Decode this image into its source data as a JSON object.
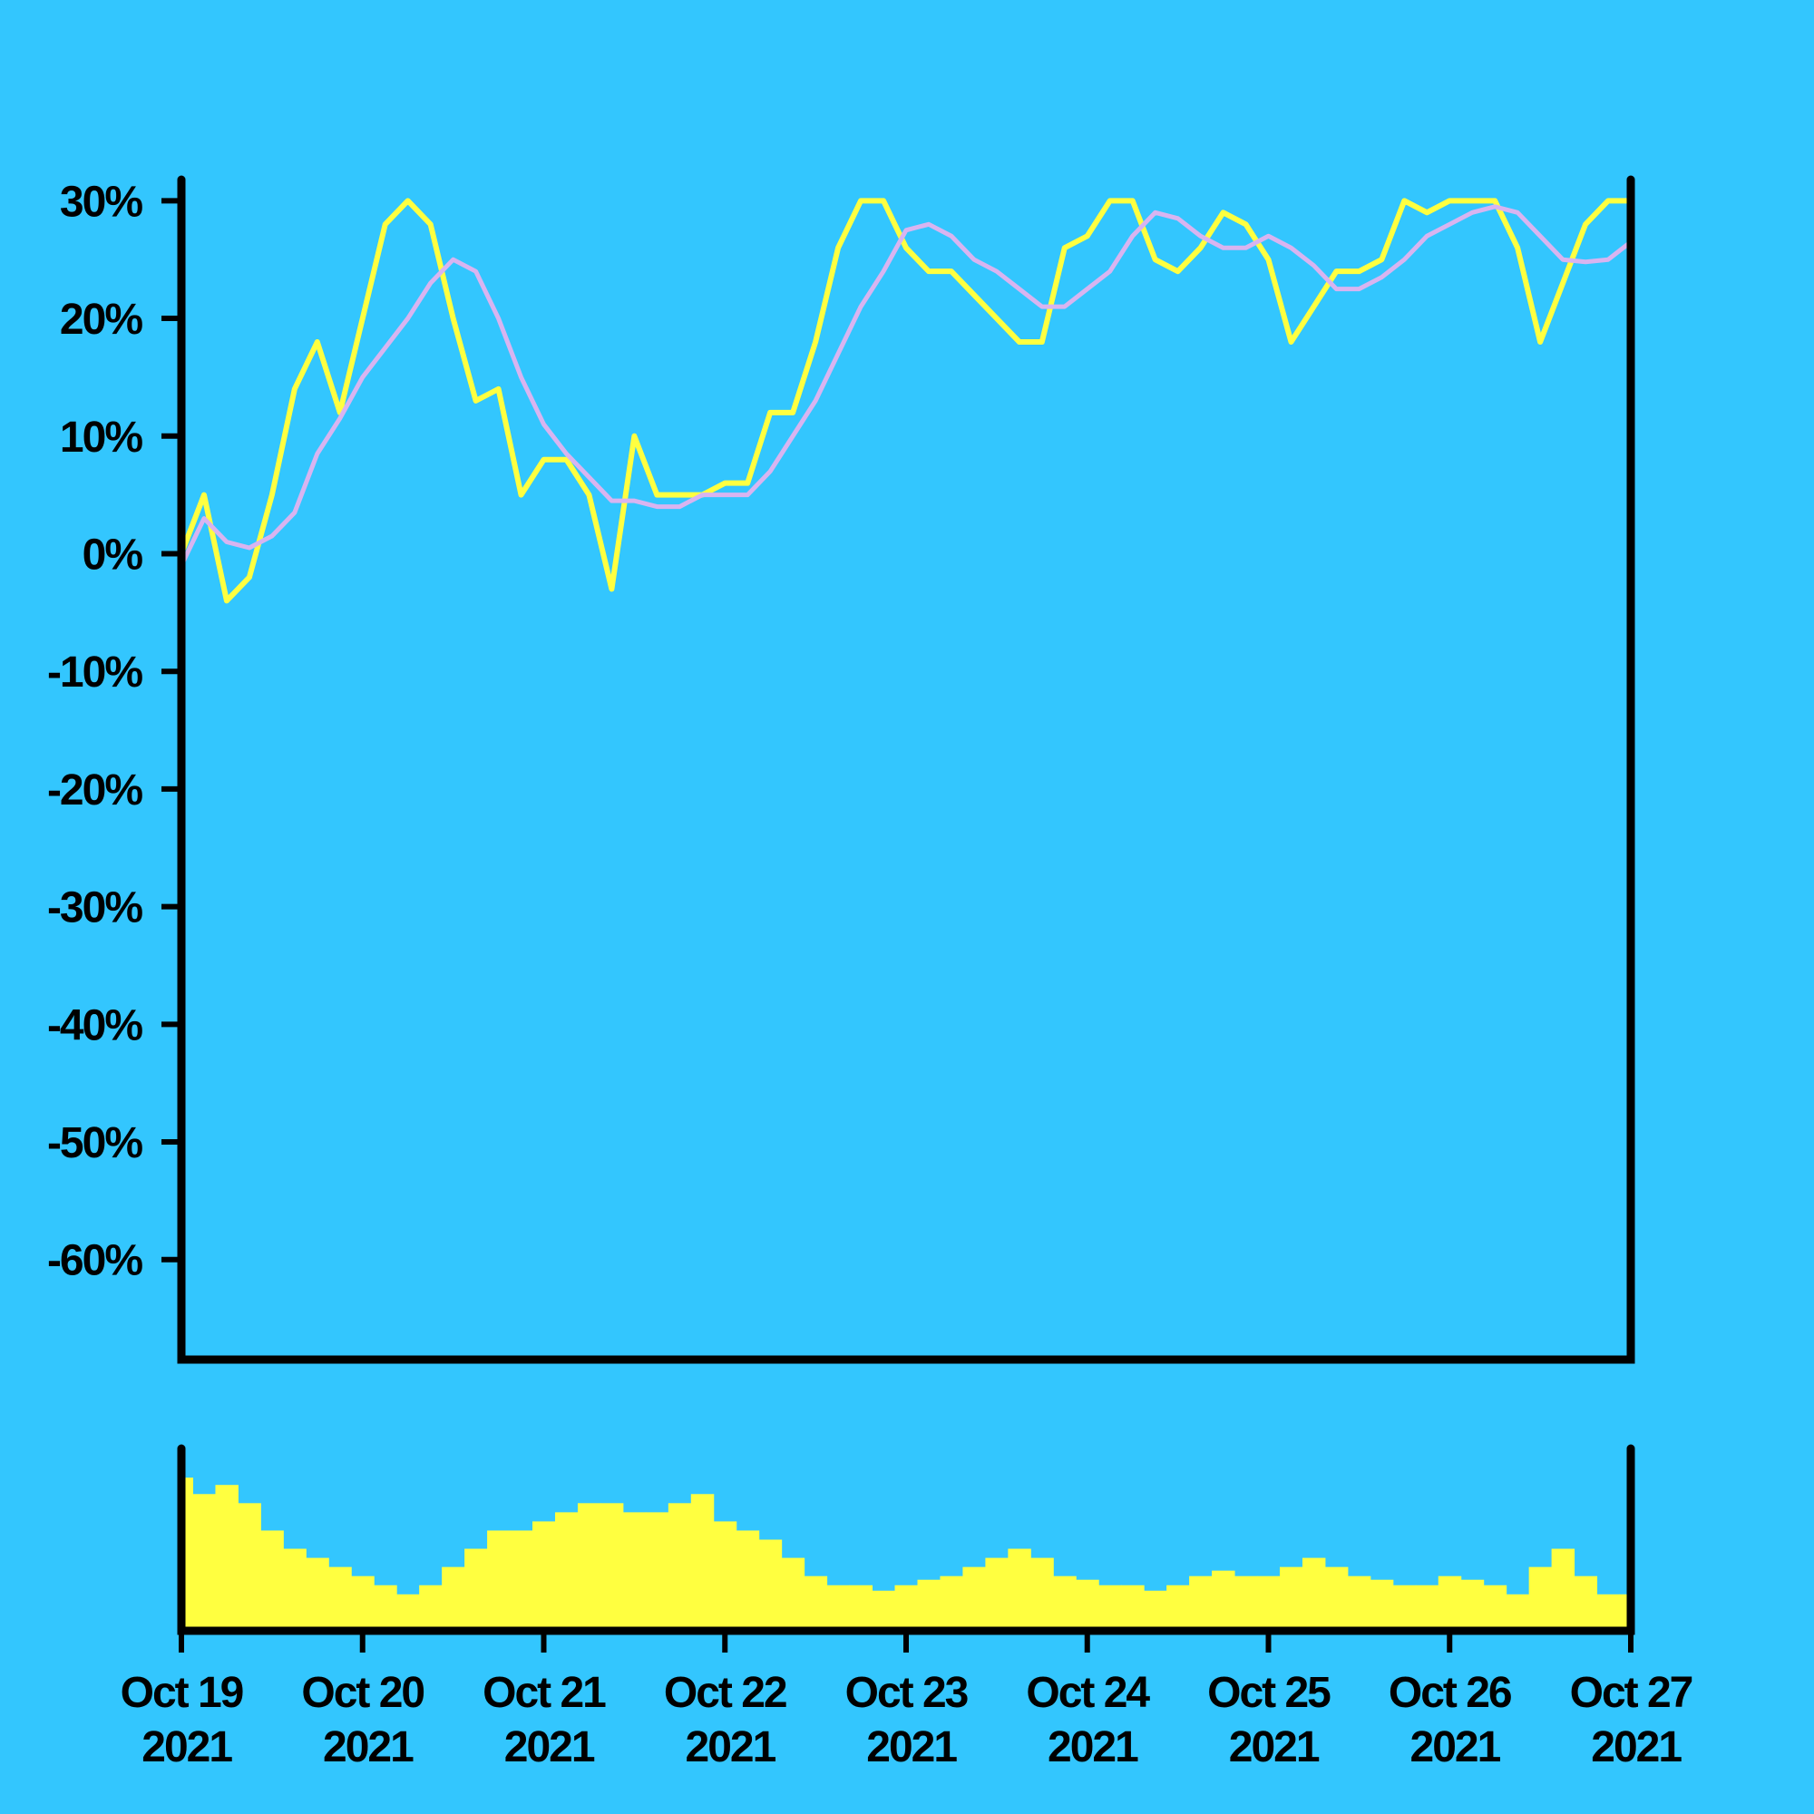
{
  "chart_data": [
    {
      "type": "line",
      "categories": [
        "Oct 19 2021",
        null,
        null,
        null,
        null,
        null,
        null,
        null,
        "Oct 20 2021",
        null,
        null,
        null,
        null,
        null,
        null,
        null,
        "Oct 21 2021",
        null,
        null,
        null,
        null,
        null,
        null,
        null,
        "Oct 22 2021",
        null,
        null,
        null,
        null,
        null,
        null,
        null,
        "Oct 23 2021",
        null,
        null,
        null,
        null,
        null,
        null,
        null,
        "Oct 24 2021",
        null,
        null,
        null,
        null,
        null,
        null,
        null,
        "Oct 25 2021",
        null,
        null,
        null,
        null,
        null,
        null,
        null,
        "Oct 26 2021",
        null,
        null,
        null,
        null,
        null,
        null,
        null,
        "Oct 27 2021"
      ],
      "series": [
        {
          "color": "#ffff40",
          "values": [
            0,
            5,
            -4,
            -2,
            5,
            14,
            18,
            12,
            20,
            28,
            30,
            28,
            20,
            13,
            14,
            5,
            8,
            8,
            5,
            -3,
            10,
            5,
            5,
            5,
            6,
            6,
            12,
            12,
            18,
            26,
            30,
            30,
            26,
            24,
            24,
            22,
            20,
            18,
            18,
            26,
            27,
            30,
            30,
            25,
            24,
            26,
            29,
            28,
            25,
            18,
            21,
            24,
            24,
            25,
            30,
            29,
            30,
            30,
            30,
            26,
            18,
            23,
            28,
            30,
            30
          ]
        },
        {
          "color": "#d8b4f0",
          "values": [
            -1,
            3,
            1,
            0.5,
            1.5,
            3.5,
            8.5,
            11.5,
            15,
            17.5,
            20,
            23,
            25,
            24,
            20,
            15,
            11,
            8.5,
            6.5,
            4.5,
            4.5,
            4,
            4,
            5,
            5,
            5,
            7,
            10,
            13,
            17,
            21,
            24,
            27.5,
            28,
            27,
            25,
            24,
            22.5,
            21,
            21,
            22.5,
            24,
            27,
            29,
            28.5,
            27,
            26,
            26,
            27,
            26,
            24.5,
            22.5,
            22.5,
            23.5,
            25,
            27,
            28,
            29,
            29.5,
            29,
            27,
            25,
            24.8,
            25,
            26.5
          ]
        }
      ],
      "ylim": [
        -68.5,
        31.8
      ],
      "yticks": [
        {
          "value": 30,
          "label": "30%"
        },
        {
          "value": 20,
          "label": "20%"
        },
        {
          "value": 10,
          "label": "10%"
        },
        {
          "value": 0,
          "label": "0%"
        },
        {
          "value": -10,
          "label": "-10%"
        },
        {
          "value": -20,
          "label": "-20%"
        },
        {
          "value": -30,
          "label": "-30%"
        },
        {
          "value": -40,
          "label": "-40%"
        },
        {
          "value": -50,
          "label": "-50%"
        },
        {
          "value": -60,
          "label": "-60%"
        }
      ]
    },
    {
      "type": "bar",
      "color": "#ffff40",
      "ylim": [
        0,
        100
      ],
      "values": [
        84,
        75,
        80,
        70,
        55,
        45,
        40,
        35,
        30,
        25,
        20,
        25,
        35,
        45,
        55,
        55,
        60,
        65,
        70,
        70,
        65,
        65,
        70,
        75,
        60,
        55,
        50,
        40,
        30,
        25,
        25,
        22,
        25,
        28,
        30,
        35,
        40,
        45,
        40,
        30,
        28,
        25,
        25,
        22,
        25,
        30,
        33,
        30,
        30,
        35,
        40,
        35,
        30,
        28,
        25,
        25,
        30,
        28,
        25,
        20,
        35,
        45,
        30,
        20,
        20
      ]
    }
  ]
}
